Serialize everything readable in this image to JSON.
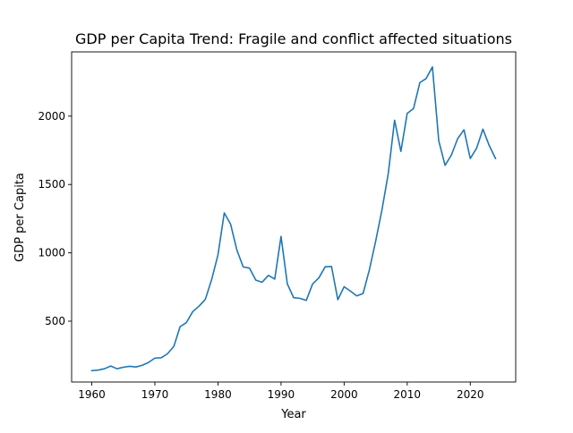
{
  "chart_data": {
    "type": "line",
    "title": "GDP per Capita Trend: Fragile and conflict affected situations",
    "xlabel": "Year",
    "ylabel": "GDP per Capita",
    "xlim": [
      1956.8,
      2027.2
    ],
    "ylim": [
      55,
      2470
    ],
    "xticks": [
      1960,
      1970,
      1980,
      1990,
      2000,
      2010,
      2020
    ],
    "yticks": [
      500,
      1000,
      1500,
      2000
    ],
    "grid": false,
    "legend": "none",
    "series": [
      {
        "color": "#1f77b4",
        "x": [
          1960,
          1961,
          1962,
          1963,
          1964,
          1965,
          1966,
          1967,
          1968,
          1969,
          1970,
          1971,
          1972,
          1973,
          1974,
          1975,
          1976,
          1977,
          1978,
          1979,
          1980,
          1981,
          1982,
          1983,
          1984,
          1985,
          1986,
          1987,
          1988,
          1989,
          1990,
          1991,
          1992,
          1993,
          1994,
          1995,
          1996,
          1997,
          1998,
          1999,
          2000,
          2001,
          2002,
          2003,
          2004,
          2005,
          2006,
          2007,
          2008,
          2009,
          2010,
          2011,
          2012,
          2013,
          2014,
          2015,
          2016,
          2017,
          2018,
          2019,
          2020,
          2021,
          2022,
          2023,
          2024
        ],
        "y": [
          138,
          142,
          152,
          172,
          152,
          163,
          170,
          165,
          178,
          198,
          230,
          232,
          262,
          315,
          460,
          490,
          570,
          610,
          660,
          805,
          985,
          1292,
          1210,
          1020,
          897,
          888,
          800,
          785,
          835,
          808,
          1120,
          772,
          672,
          667,
          652,
          772,
          817,
          898,
          900,
          657,
          752,
          720,
          685,
          702,
          875,
          1085,
          1315,
          1580,
          1970,
          1742,
          2020,
          2055,
          2245,
          2275,
          2360,
          1820,
          1640,
          1715,
          1835,
          1900,
          1690,
          1765,
          1905,
          1785,
          1690
        ]
      }
    ]
  }
}
